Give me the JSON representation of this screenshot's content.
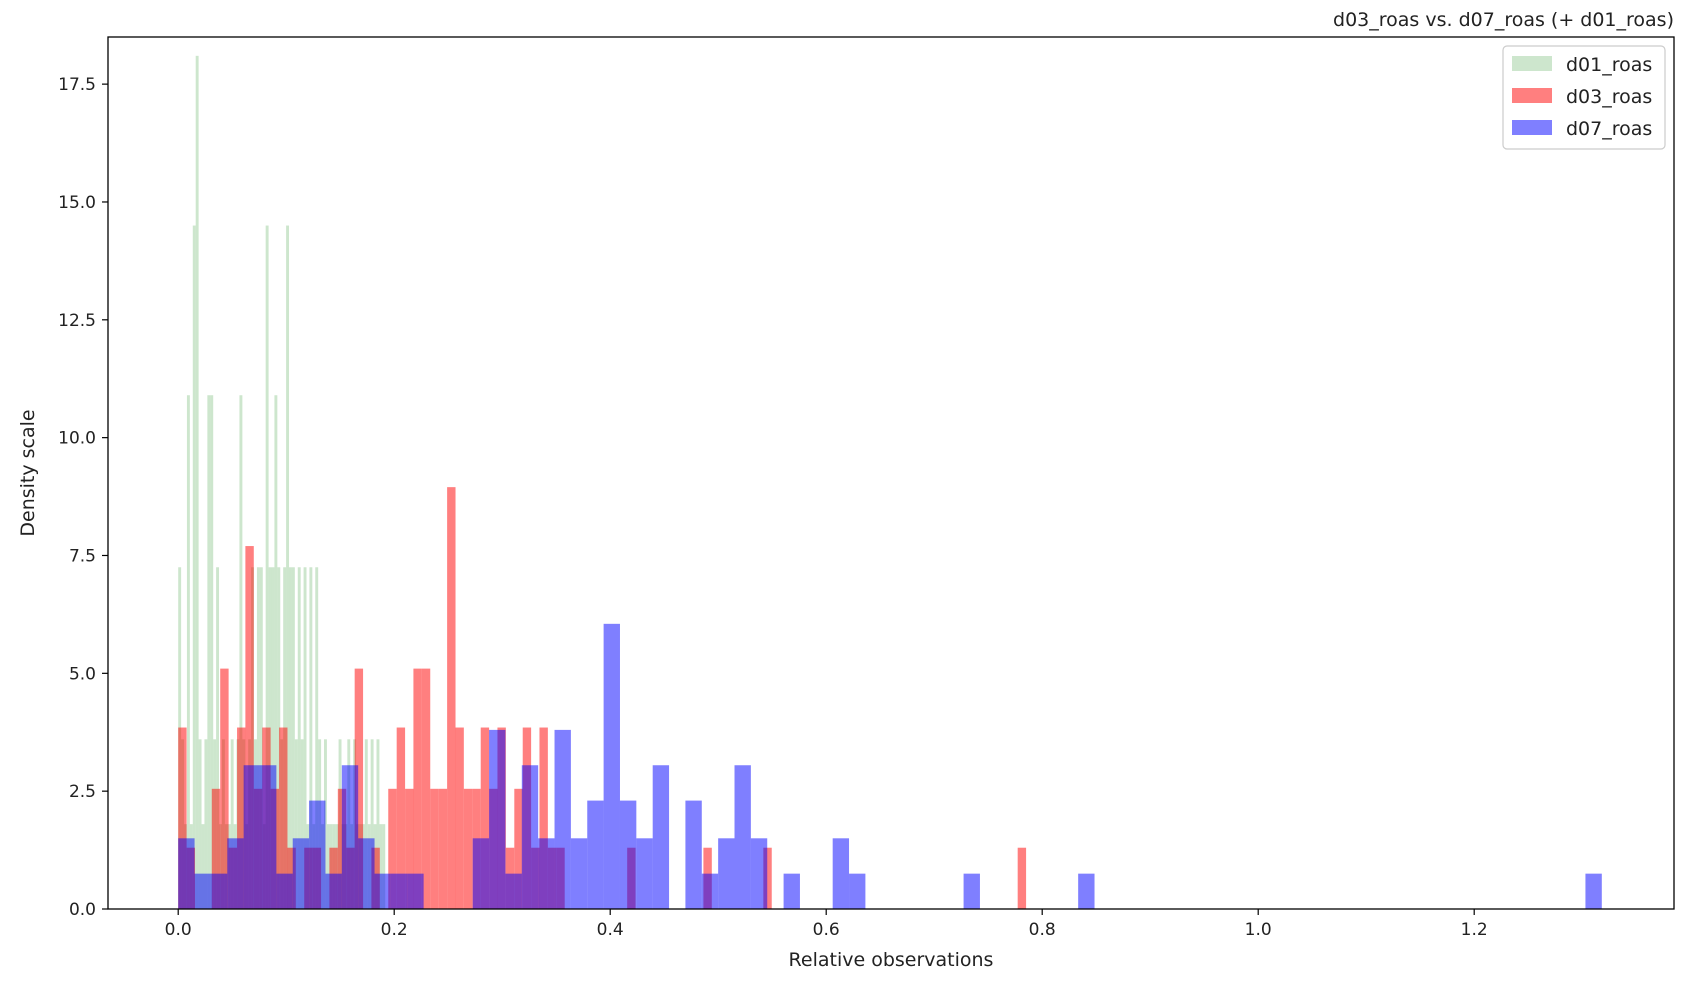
{
  "chart_data": {
    "type": "histogram",
    "title": "d03_roas vs. d07_roas (+ d01_roas)",
    "xlabel": "Relative observations",
    "ylabel": "Density scale",
    "xlim": [
      -0.065,
      1.385
    ],
    "ylim": [
      0,
      18.5
    ],
    "xticks": [
      0.0,
      0.2,
      0.4,
      0.6,
      0.8,
      1.0,
      1.2
    ],
    "xtick_labels": [
      "0.0",
      "0.2",
      "0.4",
      "0.6",
      "0.8",
      "1.0",
      "1.2"
    ],
    "yticks": [
      0.0,
      2.5,
      5.0,
      7.5,
      10.0,
      12.5,
      15.0,
      17.5
    ],
    "ytick_labels": [
      "0.0",
      "2.5",
      "5.0",
      "7.5",
      "10.0",
      "12.5",
      "15.0",
      "17.5"
    ],
    "grid": false,
    "legend_position": "top-right",
    "series": [
      {
        "name": "d01_roas",
        "color": "#90c890",
        "opacity": 0.45,
        "bin_width": 0.0027,
        "bins": [
          [
            0.0,
            7.25
          ],
          [
            0.0027,
            3.6
          ],
          [
            0.0054,
            1.8
          ],
          [
            0.0081,
            10.9
          ],
          [
            0.0108,
            1.8
          ],
          [
            0.0135,
            14.5
          ],
          [
            0.0162,
            18.1
          ],
          [
            0.0189,
            3.6
          ],
          [
            0.0216,
            1.8
          ],
          [
            0.0243,
            3.6
          ],
          [
            0.027,
            10.9
          ],
          [
            0.0297,
            10.9
          ],
          [
            0.0324,
            3.6
          ],
          [
            0.0351,
            7.25
          ],
          [
            0.0378,
            1.8
          ],
          [
            0.0405,
            3.6
          ],
          [
            0.0432,
            1.8
          ],
          [
            0.0459,
            1.8
          ],
          [
            0.0486,
            3.6
          ],
          [
            0.0513,
            1.8
          ],
          [
            0.054,
            3.6
          ],
          [
            0.0567,
            10.9
          ],
          [
            0.0594,
            3.6
          ],
          [
            0.0621,
            1.8
          ],
          [
            0.0648,
            3.6
          ],
          [
            0.0675,
            7.25
          ],
          [
            0.0702,
            3.6
          ],
          [
            0.0729,
            7.25
          ],
          [
            0.0756,
            7.25
          ],
          [
            0.0783,
            1.8
          ],
          [
            0.081,
            14.5
          ],
          [
            0.0837,
            7.25
          ],
          [
            0.0864,
            7.25
          ],
          [
            0.0891,
            10.9
          ],
          [
            0.0918,
            7.25
          ],
          [
            0.0945,
            3.6
          ],
          [
            0.0972,
            7.25
          ],
          [
            0.0999,
            14.5
          ],
          [
            0.1026,
            7.25
          ],
          [
            0.1053,
            7.25
          ],
          [
            0.108,
            3.6
          ],
          [
            0.1107,
            7.25
          ],
          [
            0.1134,
            3.6
          ],
          [
            0.1161,
            7.25
          ],
          [
            0.1188,
            1.8
          ],
          [
            0.1215,
            7.25
          ],
          [
            0.1242,
            1.8
          ],
          [
            0.1269,
            7.25
          ],
          [
            0.1296,
            3.6
          ],
          [
            0.1323,
            1.8
          ],
          [
            0.135,
            3.6
          ],
          [
            0.1377,
            1.8
          ],
          [
            0.1404,
            1.8
          ],
          [
            0.1431,
            1.8
          ],
          [
            0.1458,
            1.8
          ],
          [
            0.1485,
            3.6
          ],
          [
            0.1512,
            1.8
          ],
          [
            0.1539,
            1.8
          ],
          [
            0.1566,
            3.6
          ],
          [
            0.1593,
            1.8
          ],
          [
            0.162,
            3.6
          ],
          [
            0.1647,
            1.8
          ],
          [
            0.1674,
            1.8
          ],
          [
            0.1701,
            1.8
          ],
          [
            0.1728,
            3.6
          ],
          [
            0.1755,
            1.8
          ],
          [
            0.1782,
            3.6
          ],
          [
            0.1809,
            1.8
          ],
          [
            0.1836,
            3.6
          ],
          [
            0.1863,
            1.8
          ],
          [
            0.189,
            1.8
          ]
        ]
      },
      {
        "name": "d03_roas",
        "color": "#ff0000",
        "opacity": 0.5,
        "bin_width": 0.00778,
        "bins": [
          [
            0.0,
            3.85
          ],
          [
            0.0078,
            1.3
          ],
          [
            0.0156,
            0.0
          ],
          [
            0.0233,
            0.0
          ],
          [
            0.0311,
            2.55
          ],
          [
            0.0389,
            5.1
          ],
          [
            0.0467,
            1.3
          ],
          [
            0.0545,
            3.85
          ],
          [
            0.0622,
            7.7
          ],
          [
            0.07,
            2.55
          ],
          [
            0.0778,
            3.85
          ],
          [
            0.0856,
            2.55
          ],
          [
            0.0934,
            3.85
          ],
          [
            0.1011,
            1.3
          ],
          [
            0.1089,
            0.0
          ],
          [
            0.1167,
            1.3
          ],
          [
            0.1245,
            1.3
          ],
          [
            0.1323,
            0.0
          ],
          [
            0.14,
            1.3
          ],
          [
            0.1478,
            2.55
          ],
          [
            0.1556,
            1.3
          ],
          [
            0.1634,
            5.1
          ],
          [
            0.1712,
            0.0
          ],
          [
            0.1789,
            1.3
          ],
          [
            0.1867,
            0.0
          ],
          [
            0.1945,
            2.55
          ],
          [
            0.2023,
            3.85
          ],
          [
            0.2101,
            2.55
          ],
          [
            0.2178,
            5.1
          ],
          [
            0.2256,
            5.1
          ],
          [
            0.2334,
            2.55
          ],
          [
            0.2412,
            2.55
          ],
          [
            0.249,
            8.95
          ],
          [
            0.2567,
            3.85
          ],
          [
            0.2645,
            2.55
          ],
          [
            0.2723,
            2.55
          ],
          [
            0.2801,
            3.85
          ],
          [
            0.2879,
            2.55
          ],
          [
            0.2956,
            3.85
          ],
          [
            0.3034,
            1.3
          ],
          [
            0.3112,
            2.55
          ],
          [
            0.319,
            3.85
          ],
          [
            0.3268,
            1.3
          ],
          [
            0.3345,
            3.85
          ],
          [
            0.3423,
            1.3
          ],
          [
            0.3501,
            1.3
          ],
          [
            0.3579,
            0.0
          ],
          [
            0.4157,
            1.3
          ],
          [
            0.4863,
            1.3
          ],
          [
            0.5418,
            1.3
          ],
          [
            0.7773,
            1.3
          ]
        ]
      },
      {
        "name": "d07_roas",
        "color": "#0000ff",
        "opacity": 0.5,
        "bin_width": 0.01515,
        "bins": [
          [
            0.0,
            1.5
          ],
          [
            0.01515,
            0.75
          ],
          [
            0.0303,
            0.75
          ],
          [
            0.04545,
            1.5
          ],
          [
            0.0606,
            3.05
          ],
          [
            0.07575,
            3.05
          ],
          [
            0.0909,
            0.75
          ],
          [
            0.10605,
            1.5
          ],
          [
            0.1212,
            2.3
          ],
          [
            0.13635,
            0.75
          ],
          [
            0.1515,
            3.05
          ],
          [
            0.16665,
            1.5
          ],
          [
            0.1818,
            0.75
          ],
          [
            0.19695,
            0.75
          ],
          [
            0.2121,
            0.75
          ],
          [
            0.22725,
            0.0
          ],
          [
            0.2424,
            0.0
          ],
          [
            0.25755,
            0.0
          ],
          [
            0.2727,
            1.5
          ],
          [
            0.28785,
            3.8
          ],
          [
            0.303,
            0.75
          ],
          [
            0.31815,
            3.05
          ],
          [
            0.3333,
            1.5
          ],
          [
            0.34845,
            3.8
          ],
          [
            0.3636,
            1.5
          ],
          [
            0.37875,
            2.3
          ],
          [
            0.3939,
            6.05
          ],
          [
            0.40905,
            2.3
          ],
          [
            0.4242,
            1.5
          ],
          [
            0.43935,
            3.05
          ],
          [
            0.4545,
            0.0
          ],
          [
            0.46965,
            2.3
          ],
          [
            0.4848,
            0.75
          ],
          [
            0.49995,
            1.5
          ],
          [
            0.5151,
            3.05
          ],
          [
            0.53025,
            1.5
          ],
          [
            0.5454,
            0.0
          ],
          [
            0.56055,
            0.75
          ],
          [
            0.606,
            1.5
          ],
          [
            0.62115,
            0.75
          ],
          [
            0.7272,
            0.75
          ],
          [
            0.8333,
            0.75
          ],
          [
            1.303,
            0.75
          ]
        ]
      }
    ]
  }
}
